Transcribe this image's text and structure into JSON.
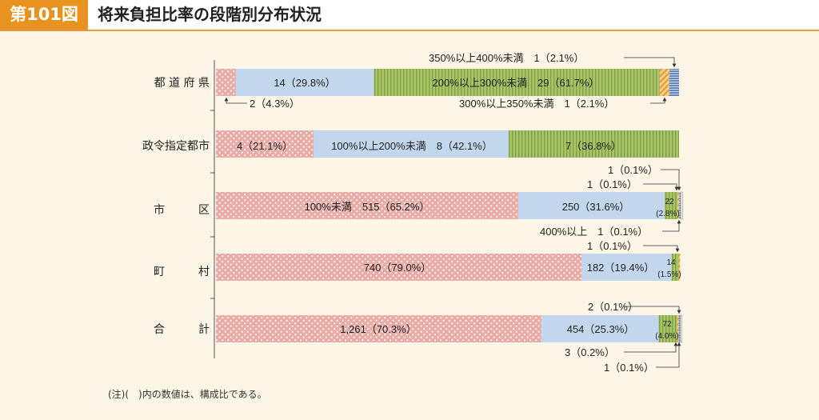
{
  "header": {
    "figure_number": "第101図",
    "title": "将来負担比率の段階別分布状況"
  },
  "note": "(注)(　)内の数値は、構成比である。",
  "colors": {
    "pink": "#e8aba6",
    "pink_dot": "#fbeeee",
    "blue": "#c2d6ee",
    "green": "#a9c46a",
    "green_stripe": "#7fa23d",
    "orange": "#f3cf83",
    "orange_stripe": "#e39a3a",
    "navy": "#5d7fb9",
    "navy_stripe": "#c8d5ea"
  },
  "chart_data": {
    "type": "stacked-bar-horizontal",
    "categories": [
      "都 道 府 県",
      "政令指定都市",
      "市　　　区",
      "町　　　村",
      "合　　　計"
    ],
    "rows": [
      {
        "category": "都 道 府 県",
        "segments": [
          {
            "band": "100%未満",
            "count": 2,
            "pct": 4.3
          },
          {
            "band": "100%以上200%未満",
            "count": 14,
            "pct": 29.8
          },
          {
            "band": "200%以上300%未満",
            "count": 29,
            "pct": 61.7
          },
          {
            "band": "300%以上350%未満",
            "count": 1,
            "pct": 2.1
          },
          {
            "band": "350%以上400%未満",
            "count": 1,
            "pct": 2.1
          }
        ]
      },
      {
        "category": "政令指定都市",
        "segments": [
          {
            "band": "100%未満",
            "count": 4,
            "pct": 21.1
          },
          {
            "band": "100%以上200%未満",
            "count": 8,
            "pct": 42.1
          },
          {
            "band": "200%以上300%未満",
            "count": 7,
            "pct": 36.8
          }
        ]
      },
      {
        "category": "市　　　区",
        "segments": [
          {
            "band": "100%未満",
            "count": 515,
            "pct": 65.2
          },
          {
            "band": "100%以上200%未満",
            "count": 250,
            "pct": 31.6
          },
          {
            "band": "200%以上300%未満",
            "count": 22,
            "pct": 2.8
          },
          {
            "band": "300%以上350%未満",
            "count": 1,
            "pct": 0.1
          },
          {
            "band": "350%以上400%未満",
            "count": 1,
            "pct": 0.1
          },
          {
            "band": "400%以上",
            "count": 1,
            "pct": 0.1
          }
        ]
      },
      {
        "category": "町　　　村",
        "segments": [
          {
            "band": "100%未満",
            "count": 740,
            "pct": 79.0
          },
          {
            "band": "100%以上200%未満",
            "count": 182,
            "pct": 19.4
          },
          {
            "band": "200%以上300%未満",
            "count": 14,
            "pct": 1.5
          },
          {
            "band": "300%以上350%未満",
            "count": 1,
            "pct": 0.1
          }
        ]
      },
      {
        "category": "合　　　計",
        "segments": [
          {
            "band": "100%未満",
            "count": 1261,
            "pct": 70.3
          },
          {
            "band": "100%以上200%未満",
            "count": 454,
            "pct": 25.3
          },
          {
            "band": "200%以上300%未満",
            "count": 72,
            "pct": 4.0
          },
          {
            "band": "300%以上350%未満",
            "count": 3,
            "pct": 0.2
          },
          {
            "band": "350%以上400%未満",
            "count": 2,
            "pct": 0.1
          },
          {
            "band": "400%以上",
            "count": 1,
            "pct": 0.1
          }
        ]
      }
    ],
    "labels": {
      "pref_orange_navy_top": "350%以上400%未満　1（2.1%）",
      "pref_pink": "14（29.8%）",
      "pref_green": "200%以上300%未満　29（61.7%）",
      "pref_pink_below": "2（4.3%）",
      "pref_orange_below": "300%以上350%未満　1（2.1%）",
      "city_pink": "4（21.1%）",
      "city_blue": "100%以上200%未満　8（42.1%）",
      "city_green": "7（36.8%）",
      "ward_top1": "1（0.1%）",
      "ward_top2": "1（0.1%）",
      "ward_pink": "100%未満　515（65.2%）",
      "ward_blue": "250（31.6%）",
      "ward_green_a": "22",
      "ward_green_b": "(2.8%)",
      "ward_below": "400%以上　1（0.1%）",
      "town_top": "1（0.1%）",
      "town_pink": "740（79.0%）",
      "town_blue": "182（19.4%）",
      "town_green_a": "14",
      "town_green_b": "(1.5%)",
      "total_top": "2（0.1%）",
      "total_pink": "1,261（70.3%）",
      "total_blue": "454（25.3%）",
      "total_green_a": "72",
      "total_green_b": "(4.0%)",
      "total_below1": "3（0.2%）",
      "total_below2": "1（0.1%）"
    }
  }
}
